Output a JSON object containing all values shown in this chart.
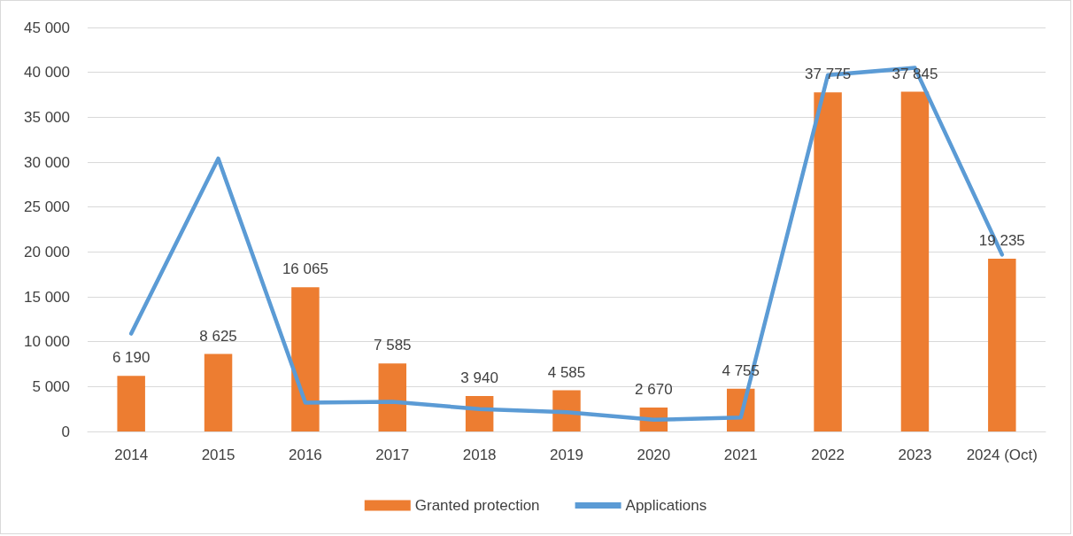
{
  "chart_data": {
    "type": "bar",
    "categories": [
      "2014",
      "2015",
      "2016",
      "2017",
      "2018",
      "2019",
      "2020",
      "2021",
      "2022",
      "2023",
      "2024 (Oct)"
    ],
    "series": [
      {
        "name": "Granted protection",
        "color": "#ed7d31",
        "values": [
          6190,
          8625,
          16065,
          7585,
          3940,
          4585,
          2670,
          4755,
          37775,
          37845,
          19235
        ],
        "value_labels": [
          "6 190",
          "8 625",
          "16 065",
          "7 585",
          "3 940",
          "4 585",
          "2 670",
          "4 755",
          "37 775",
          "37 845",
          "19 235"
        ]
      },
      {
        "name": "Applications",
        "type": "line",
        "color": "#5b9bd5",
        "values": [
          10900,
          30400,
          3200,
          3300,
          2500,
          2150,
          1300,
          1550,
          39700,
          40500,
          19700
        ]
      }
    ],
    "ylim": [
      0,
      45000
    ],
    "yticks": [
      {
        "value": 0,
        "label": "0"
      },
      {
        "value": 5000,
        "label": "5 000"
      },
      {
        "value": 10000,
        "label": "10 000"
      },
      {
        "value": 15000,
        "label": "15 000"
      },
      {
        "value": 20000,
        "label": "20 000"
      },
      {
        "value": 25000,
        "label": "25 000"
      },
      {
        "value": 30000,
        "label": "30 000"
      },
      {
        "value": 35000,
        "label": "35 000"
      },
      {
        "value": 40000,
        "label": "40 000"
      },
      {
        "value": 45000,
        "label": "45 000"
      }
    ],
    "grid": "y",
    "legend": "bottom",
    "marker": "none",
    "line_style": "solid"
  }
}
